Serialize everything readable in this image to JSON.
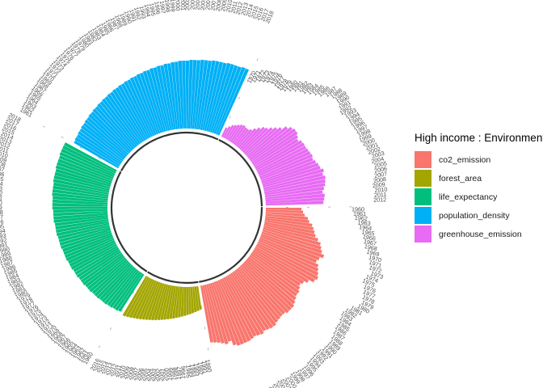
{
  "chart_data": {
    "type": "bar",
    "layout": "circular",
    "title": "",
    "legend": {
      "title": "High income : Environment",
      "position": "right",
      "entries": [
        {
          "name": "co2_emission",
          "color": "#F8766D"
        },
        {
          "name": "forest_area",
          "color": "#A3A500"
        },
        {
          "name": "life_expectancy",
          "color": "#00BF7D"
        },
        {
          "name": "population_density",
          "color": "#00B0F6"
        },
        {
          "name": "greenhouse_emission",
          "color": "#E76BF3"
        }
      ]
    },
    "grid": false,
    "axes_visible": false,
    "series": [
      {
        "name": "co2_emission",
        "color": "#F8766D",
        "years": [
          1960,
          1961,
          1962,
          1963,
          1964,
          1965,
          1966,
          1967,
          1968,
          1969,
          1970,
          1971,
          1972,
          1973,
          1974,
          1975,
          1976,
          1977,
          1978,
          1979,
          1980,
          1981,
          1982,
          1983,
          1984,
          1985,
          1986,
          1987,
          1988,
          1989,
          1990,
          1991,
          1992,
          1993,
          1994,
          1995,
          1996,
          1997,
          1998,
          1999,
          2000,
          2001,
          2002,
          2003,
          2004,
          2005,
          2006,
          2007,
          2008,
          2009,
          2010,
          2011,
          2012,
          2013,
          2014
        ],
        "values": [
          0.42,
          0.44,
          0.46,
          0.5,
          0.52,
          0.56,
          0.58,
          0.6,
          0.62,
          0.66,
          0.7,
          0.72,
          0.74,
          0.78,
          0.74,
          0.72,
          0.76,
          0.78,
          0.8,
          0.82,
          0.8,
          0.74,
          0.7,
          0.68,
          0.7,
          0.72,
          0.72,
          0.74,
          0.76,
          0.78,
          0.78,
          0.78,
          0.76,
          0.76,
          0.77,
          0.78,
          0.8,
          0.8,
          0.79,
          0.78,
          0.8,
          0.79,
          0.78,
          0.79,
          0.8,
          0.8,
          0.8,
          0.8,
          0.78,
          0.72,
          0.74,
          0.72,
          0.7,
          0.69,
          0.68
        ]
      },
      {
        "name": "forest_area",
        "color": "#A3A500",
        "years": [
          1990,
          1991,
          1992,
          1993,
          1994,
          1995,
          1996,
          1997,
          1998,
          1999,
          2000,
          2001,
          2002,
          2003,
          2004,
          2005,
          2006,
          2007,
          2008,
          2009,
          2010,
          2011,
          2012,
          2013,
          2014,
          2015,
          2016
        ],
        "values": [
          0.28,
          0.29,
          0.3,
          0.31,
          0.32,
          0.33,
          0.34,
          0.35,
          0.36,
          0.37,
          0.38,
          0.39,
          0.4,
          0.41,
          0.42,
          0.43,
          0.44,
          0.45,
          0.46,
          0.47,
          0.48,
          0.49,
          0.5,
          0.51,
          0.52,
          0.53,
          0.54
        ]
      },
      {
        "name": "life_expectancy",
        "color": "#00BF7D",
        "years": [
          1960,
          1961,
          1962,
          1963,
          1964,
          1965,
          1966,
          1967,
          1968,
          1969,
          1970,
          1971,
          1972,
          1973,
          1974,
          1975,
          1976,
          1977,
          1978,
          1979,
          1980,
          1981,
          1982,
          1983,
          1984,
          1985,
          1986,
          1987,
          1988,
          1989,
          1990,
          1991,
          1992,
          1993,
          1994,
          1995,
          1996,
          1997,
          1998,
          1999,
          2000,
          2001,
          2002,
          2003,
          2004,
          2005,
          2006,
          2007,
          2008,
          2009,
          2010,
          2011,
          2012,
          2013,
          2014,
          2015,
          2016,
          2017,
          2018
        ],
        "values": [
          0.52,
          0.53,
          0.53,
          0.54,
          0.54,
          0.55,
          0.55,
          0.55,
          0.56,
          0.56,
          0.56,
          0.57,
          0.57,
          0.57,
          0.58,
          0.58,
          0.58,
          0.59,
          0.59,
          0.59,
          0.6,
          0.6,
          0.6,
          0.61,
          0.61,
          0.61,
          0.61,
          0.62,
          0.62,
          0.62,
          0.62,
          0.63,
          0.63,
          0.63,
          0.63,
          0.64,
          0.64,
          0.64,
          0.64,
          0.65,
          0.65,
          0.65,
          0.65,
          0.66,
          0.66,
          0.66,
          0.66,
          0.67,
          0.67,
          0.67,
          0.67,
          0.68,
          0.68,
          0.68,
          0.68,
          0.69,
          0.69,
          0.69,
          0.69
        ]
      },
      {
        "name": "population_density",
        "color": "#00B0F6",
        "years": [
          1961,
          1962,
          1963,
          1964,
          1965,
          1966,
          1967,
          1968,
          1969,
          1970,
          1971,
          1972,
          1973,
          1974,
          1975,
          1976,
          1977,
          1978,
          1979,
          1980,
          1981,
          1982,
          1983,
          1984,
          1985,
          1986,
          1987,
          1988,
          1989,
          1990,
          1991,
          1992,
          1993,
          1994,
          1995,
          1996,
          1997,
          1998,
          1999,
          2000,
          2001,
          2002,
          2003,
          2004,
          2005,
          2006,
          2007,
          2008,
          2009,
          2010,
          2011,
          2012,
          2013,
          2014,
          2015,
          2016,
          2017,
          2018
        ],
        "values": [
          0.6,
          0.61,
          0.61,
          0.62,
          0.62,
          0.63,
          0.63,
          0.64,
          0.64,
          0.65,
          0.65,
          0.66,
          0.66,
          0.67,
          0.67,
          0.68,
          0.68,
          0.69,
          0.69,
          0.7,
          0.7,
          0.71,
          0.71,
          0.72,
          0.72,
          0.73,
          0.73,
          0.74,
          0.74,
          0.75,
          0.75,
          0.76,
          0.76,
          0.77,
          0.77,
          0.78,
          0.78,
          0.79,
          0.79,
          0.8,
          0.8,
          0.8,
          0.81,
          0.81,
          0.81,
          0.82,
          0.82,
          0.82,
          0.83,
          0.83,
          0.83,
          0.83,
          0.84,
          0.84,
          0.84,
          0.84,
          0.85,
          0.85
        ]
      },
      {
        "name": "greenhouse_emission",
        "color": "#E76BF3",
        "years": [
          1970,
          1971,
          1972,
          1973,
          1974,
          1975,
          1976,
          1977,
          1978,
          1979,
          1980,
          1981,
          1982,
          1983,
          1984,
          1985,
          1986,
          1987,
          1988,
          1989,
          1990,
          1991,
          1992,
          1993,
          1994,
          1995,
          1996,
          1997,
          1998,
          1999,
          2000,
          2001,
          2002,
          2003,
          2004,
          2005,
          2006,
          2007,
          2008,
          2009,
          2010,
          2011,
          2012
        ],
        "values": [
          0.12,
          0.15,
          0.18,
          0.2,
          0.22,
          0.24,
          0.25,
          0.24,
          0.24,
          0.26,
          0.3,
          0.34,
          0.38,
          0.4,
          0.44,
          0.48,
          0.52,
          0.58,
          0.62,
          0.64,
          0.64,
          0.62,
          0.6,
          0.63,
          0.64,
          0.64,
          0.65,
          0.66,
          0.67,
          0.66,
          0.68,
          0.7,
          0.71,
          0.74,
          0.72,
          0.74,
          0.73,
          0.72,
          0.7,
          0.68,
          0.7,
          0.69,
          0.68
        ]
      }
    ]
  }
}
